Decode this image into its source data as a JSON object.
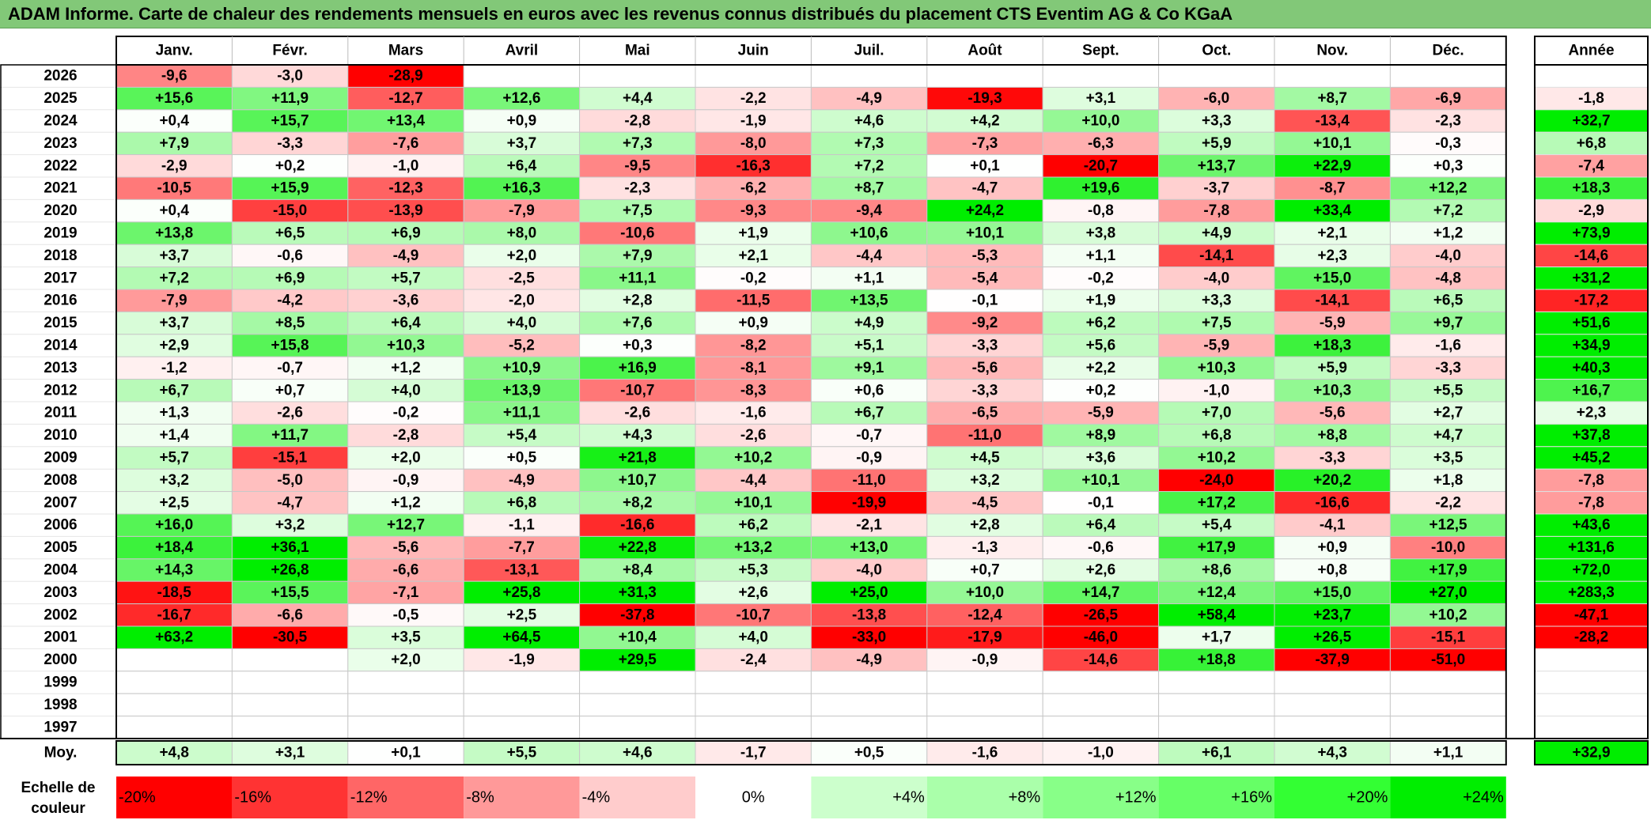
{
  "title": "ADAM Informe. Carte de chaleur des rendements mensuels en euros avec les revenus connus distribués du placement CTS Eventim AG & Co KGaA",
  "chart_data": {
    "type": "heatmap",
    "months": [
      "Janv.",
      "Févr.",
      "Mars",
      "Avril",
      "Mai",
      "Juin",
      "Juil.",
      "Août",
      "Sept.",
      "Oct.",
      "Nov.",
      "Déc."
    ],
    "year_header": "Année",
    "rows": [
      {
        "year": "2026",
        "values": [
          "-9,6",
          "-3,0",
          "-28,9",
          "",
          "",
          "",
          "",
          "",
          "",
          "",
          "",
          ""
        ],
        "annual": ""
      },
      {
        "year": "2025",
        "values": [
          "+15,6",
          "+11,9",
          "-12,7",
          "+12,6",
          "+4,4",
          "-2,2",
          "-4,9",
          "-19,3",
          "+3,1",
          "-6,0",
          "+8,7",
          "-6,9"
        ],
        "annual": "-1,8"
      },
      {
        "year": "2024",
        "values": [
          "+0,4",
          "+15,7",
          "+13,4",
          "+0,9",
          "-2,8",
          "-1,9",
          "+4,6",
          "+4,2",
          "+10,0",
          "+3,3",
          "-13,4",
          "-2,3"
        ],
        "annual": "+32,7"
      },
      {
        "year": "2023",
        "values": [
          "+7,9",
          "-3,3",
          "-7,6",
          "+3,7",
          "+7,3",
          "-8,0",
          "+7,3",
          "-7,3",
          "-6,3",
          "+5,9",
          "+10,1",
          "-0,3"
        ],
        "annual": "+6,8"
      },
      {
        "year": "2022",
        "values": [
          "-2,9",
          "+0,2",
          "-1,0",
          "+6,4",
          "-9,5",
          "-16,3",
          "+7,2",
          "+0,1",
          "-20,7",
          "+13,7",
          "+22,9",
          "+0,3"
        ],
        "annual": "-7,4"
      },
      {
        "year": "2021",
        "values": [
          "-10,5",
          "+15,9",
          "-12,3",
          "+16,3",
          "-2,3",
          "-6,2",
          "+8,7",
          "-4,7",
          "+19,6",
          "-3,7",
          "-8,7",
          "+12,2"
        ],
        "annual": "+18,3"
      },
      {
        "year": "2020",
        "values": [
          "+0,4",
          "-15,0",
          "-13,9",
          "-7,9",
          "+7,5",
          "-9,3",
          "-9,4",
          "+24,2",
          "-0,8",
          "-7,8",
          "+33,4",
          "+7,2"
        ],
        "annual": "-2,9"
      },
      {
        "year": "2019",
        "values": [
          "+13,8",
          "+6,5",
          "+6,9",
          "+8,0",
          "-10,6",
          "+1,9",
          "+10,6",
          "+10,1",
          "+3,8",
          "+4,9",
          "+2,1",
          "+1,2"
        ],
        "annual": "+73,9"
      },
      {
        "year": "2018",
        "values": [
          "+3,7",
          "-0,6",
          "-4,9",
          "+2,0",
          "+7,9",
          "+2,1",
          "-4,4",
          "-5,3",
          "+1,1",
          "-14,1",
          "+2,3",
          "-4,0"
        ],
        "annual": "-14,6"
      },
      {
        "year": "2017",
        "values": [
          "+7,2",
          "+6,9",
          "+5,7",
          "-2,5",
          "+11,1",
          "-0,2",
          "+1,1",
          "-5,4",
          "-0,2",
          "-4,0",
          "+15,0",
          "-4,8"
        ],
        "annual": "+31,2"
      },
      {
        "year": "2016",
        "values": [
          "-7,9",
          "-4,2",
          "-3,6",
          "-2,0",
          "+2,8",
          "-11,5",
          "+13,5",
          "-0,1",
          "+1,9",
          "+3,3",
          "-14,1",
          "+6,5"
        ],
        "annual": "-17,2"
      },
      {
        "year": "2015",
        "values": [
          "+3,7",
          "+8,5",
          "+6,4",
          "+4,0",
          "+7,6",
          "+0,9",
          "+4,9",
          "-9,2",
          "+6,2",
          "+7,5",
          "-5,9",
          "+9,7"
        ],
        "annual": "+51,6"
      },
      {
        "year": "2014",
        "values": [
          "+2,9",
          "+15,8",
          "+10,3",
          "-5,2",
          "+0,3",
          "-8,2",
          "+5,1",
          "-3,3",
          "+5,6",
          "-5,9",
          "+18,3",
          "-1,6"
        ],
        "annual": "+34,9"
      },
      {
        "year": "2013",
        "values": [
          "-1,2",
          "-0,7",
          "+1,2",
          "+10,9",
          "+16,9",
          "-8,1",
          "+9,1",
          "-5,6",
          "+2,2",
          "+10,3",
          "+5,9",
          "-3,3"
        ],
        "annual": "+40,3"
      },
      {
        "year": "2012",
        "values": [
          "+6,7",
          "+0,7",
          "+4,0",
          "+13,9",
          "-10,7",
          "-8,3",
          "+0,6",
          "-3,3",
          "+0,2",
          "-1,0",
          "+10,3",
          "+5,5"
        ],
        "annual": "+16,7"
      },
      {
        "year": "2011",
        "values": [
          "+1,3",
          "-2,6",
          "-0,2",
          "+11,1",
          "-2,6",
          "-1,6",
          "+6,7",
          "-6,5",
          "-5,9",
          "+7,0",
          "-5,6",
          "+2,7"
        ],
        "annual": "+2,3"
      },
      {
        "year": "2010",
        "values": [
          "+1,4",
          "+11,7",
          "-2,8",
          "+5,4",
          "+4,3",
          "-2,6",
          "-0,7",
          "-11,0",
          "+8,9",
          "+6,8",
          "+8,8",
          "+4,7"
        ],
        "annual": "+37,8"
      },
      {
        "year": "2009",
        "values": [
          "+5,7",
          "-15,1",
          "+2,0",
          "+0,5",
          "+21,8",
          "+10,2",
          "-0,9",
          "+4,5",
          "+3,6",
          "+10,2",
          "-3,3",
          "+3,5"
        ],
        "annual": "+45,2"
      },
      {
        "year": "2008",
        "values": [
          "+3,2",
          "-5,0",
          "-0,9",
          "-4,9",
          "+10,7",
          "-4,4",
          "-11,0",
          "+3,2",
          "+10,1",
          "-24,0",
          "+20,2",
          "+1,8"
        ],
        "annual": "-7,8"
      },
      {
        "year": "2007",
        "values": [
          "+2,5",
          "-4,7",
          "+1,2",
          "+6,8",
          "+8,2",
          "+10,1",
          "-19,9",
          "-4,5",
          "-0,1",
          "+17,2",
          "-16,6",
          "-2,2"
        ],
        "annual": "-7,8"
      },
      {
        "year": "2006",
        "values": [
          "+16,0",
          "+3,2",
          "+12,7",
          "-1,1",
          "-16,6",
          "+6,2",
          "-2,1",
          "+2,8",
          "+6,4",
          "+5,4",
          "-4,1",
          "+12,5"
        ],
        "annual": "+43,6"
      },
      {
        "year": "2005",
        "values": [
          "+18,4",
          "+36,1",
          "-5,6",
          "-7,7",
          "+22,8",
          "+13,2",
          "+13,0",
          "-1,3",
          "-0,6",
          "+17,9",
          "+0,9",
          "-10,0"
        ],
        "annual": "+131,6"
      },
      {
        "year": "2004",
        "values": [
          "+14,3",
          "+26,8",
          "-6,6",
          "-13,1",
          "+8,4",
          "+5,3",
          "-4,0",
          "+0,7",
          "+2,6",
          "+8,6",
          "+0,8",
          "+17,9"
        ],
        "annual": "+72,0"
      },
      {
        "year": "2003",
        "values": [
          "-18,5",
          "+15,5",
          "-7,1",
          "+25,8",
          "+31,3",
          "+2,6",
          "+25,0",
          "+10,0",
          "+14,7",
          "+12,4",
          "+15,0",
          "+27,0"
        ],
        "annual": "+283,3"
      },
      {
        "year": "2002",
        "values": [
          "-16,7",
          "-6,6",
          "-0,5",
          "+2,5",
          "-37,8",
          "-10,7",
          "-13,8",
          "-12,4",
          "-26,5",
          "+58,4",
          "+23,7",
          "+10,2"
        ],
        "annual": "-47,1"
      },
      {
        "year": "2001",
        "values": [
          "+63,2",
          "-30,5",
          "+3,5",
          "+64,5",
          "+10,4",
          "+4,0",
          "-33,0",
          "-17,9",
          "-46,0",
          "+1,7",
          "+26,5",
          "-15,1"
        ],
        "annual": "-28,2"
      },
      {
        "year": "2000",
        "values": [
          "",
          "",
          "+2,0",
          "-1,9",
          "+29,5",
          "-2,4",
          "-4,9",
          "-0,9",
          "-14,6",
          "+18,8",
          "-37,9",
          "-51,0"
        ],
        "annual": ""
      },
      {
        "year": "1999",
        "values": [
          "",
          "",
          "",
          "",
          "",
          "",
          "",
          "",
          "",
          "",
          "",
          ""
        ],
        "annual": ""
      },
      {
        "year": "1998",
        "values": [
          "",
          "",
          "",
          "",
          "",
          "",
          "",
          "",
          "",
          "",
          "",
          ""
        ],
        "annual": ""
      },
      {
        "year": "1997",
        "values": [
          "",
          "",
          "",
          "",
          "",
          "",
          "",
          "",
          "",
          "",
          "",
          ""
        ],
        "annual": ""
      }
    ],
    "average": {
      "label": "Moy.",
      "values": [
        "+4,8",
        "+3,1",
        "+0,1",
        "+5,5",
        "+4,6",
        "-1,7",
        "+0,5",
        "-1,6",
        "-1,0",
        "+6,1",
        "+4,3",
        "+1,1"
      ],
      "annual": "+32,9"
    },
    "scale": {
      "label_line1": "Echelle de",
      "label_line2": "couleur",
      "stops": [
        "-20%",
        "-16%",
        "-12%",
        "-8%",
        "-4%",
        "0%",
        "+4%",
        "+8%",
        "+12%",
        "+16%",
        "+20%",
        "+24%"
      ],
      "colors": [
        "#ff0000",
        "#ff3333",
        "#ff6666",
        "#ff9999",
        "#ffcccc",
        "#ffffff",
        "#ccffcc",
        "#aaffaa",
        "#88ff88",
        "#66ff66",
        "#33ff33",
        "#00ee00"
      ]
    },
    "color_rule": {
      "negative_full": -20,
      "positive_full": 24,
      "negative_color": "#ff0000",
      "positive_color": "#00ee00",
      "neutral_color": "#ffffff"
    }
  }
}
